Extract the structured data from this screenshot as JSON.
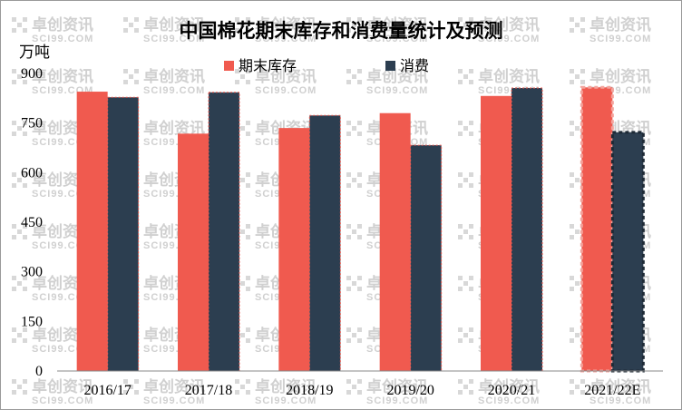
{
  "chart_data": {
    "type": "bar",
    "title": "中国棉花期末库存和消费量统计及预测",
    "ylabel": "万吨",
    "xlabel": "",
    "categories": [
      "2016/17",
      "2017/18",
      "2018/19",
      "2019/20",
      "2020/21",
      "2021/22E"
    ],
    "estimated_categories": [
      "2021/22E"
    ],
    "series": [
      {
        "name": "期末库存",
        "color": "#f05a4f",
        "values": [
          845,
          718,
          735,
          780,
          832,
          858
        ]
      },
      {
        "name": "消费",
        "color": "#2c3e50",
        "values": [
          828,
          843,
          773,
          683,
          856,
          722
        ]
      }
    ],
    "ylim": [
      0,
      900
    ],
    "yticks": [
      0,
      150,
      300,
      450,
      600,
      750,
      900
    ],
    "grid": false,
    "legend_position": "top"
  },
  "watermark": {
    "text_cn": "卓创资讯",
    "text_en": "SCI99.COM"
  }
}
